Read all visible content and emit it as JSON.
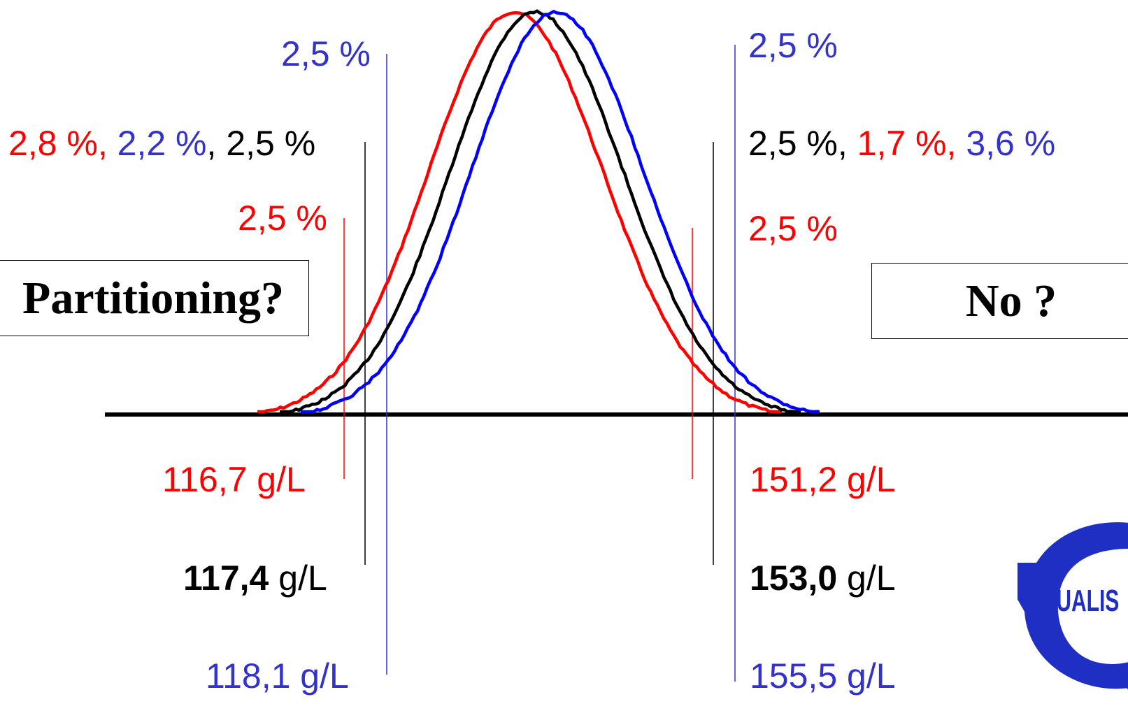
{
  "colors": {
    "red": "#ff0000",
    "blue": "#3333cc",
    "curve_blue": "#0000ff",
    "black": "#000000"
  },
  "percent_labels": {
    "blue_top_left": "2,5 %",
    "blue_top_right": "2,5 %",
    "mixed_left": {
      "red": "2,8 %",
      "sep1": ", ",
      "blue": "2,2 %",
      "sep2": ", ",
      "black": "2,5 %"
    },
    "mixed_right": {
      "black": "2,5 %",
      "sep1": ", ",
      "red": "1,7 %",
      "sep2": ", ",
      "blue": "3,6 %"
    },
    "red_left": "2,5 %",
    "red_right": "2,5 %"
  },
  "limit_labels": {
    "red_left": "116,7 g/L",
    "red_right": "151,2 g/L",
    "black_left_value": "117,4",
    "black_right_value": "153,0",
    "black_unit": " g/L",
    "blue_left": "118,1 g/L",
    "blue_right": "155,5 g/L"
  },
  "boxes": {
    "left": "Partitioning?",
    "right": "No ?"
  },
  "logo": {
    "icon": "equalis-logo-icon",
    "text": "EQUALIS"
  }
}
